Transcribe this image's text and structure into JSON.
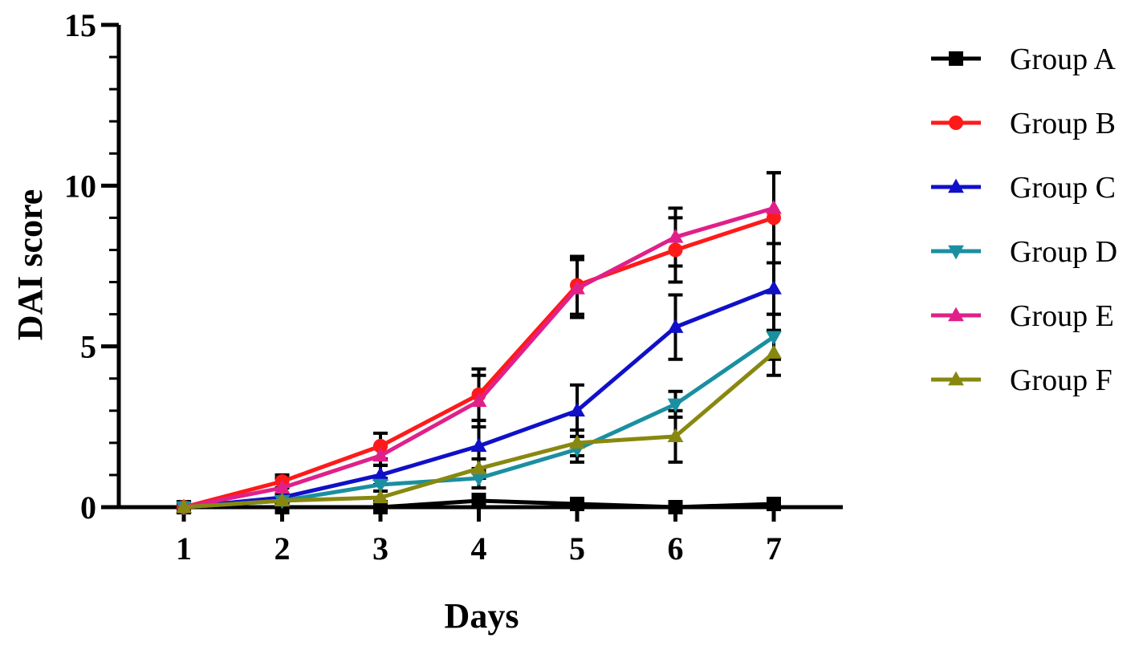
{
  "chart_data": {
    "type": "line",
    "xlabel": "Days",
    "ylabel": "DAI score",
    "x": [
      1,
      2,
      3,
      4,
      5,
      6,
      7
    ],
    "x_tick_labels": [
      "1",
      "2",
      "3",
      "4",
      "5",
      "6",
      "7"
    ],
    "ylim": [
      0,
      15
    ],
    "y_ticks": [
      0,
      5,
      10,
      15
    ],
    "y_tick_labels": [
      "0",
      "5",
      "10",
      "15"
    ],
    "grid": false,
    "legend_position": "right",
    "series": [
      {
        "name": "Group A",
        "color": "#000000",
        "marker": "square",
        "values": [
          0,
          0,
          0,
          0.2,
          0.1,
          0,
          0.1
        ],
        "errors": [
          0,
          0,
          0,
          0.2,
          0.1,
          0,
          0.1
        ]
      },
      {
        "name": "Group B",
        "color": "#ff1a1a",
        "marker": "circle",
        "values": [
          0,
          0.8,
          1.9,
          3.5,
          6.9,
          8.0,
          9.0
        ],
        "errors": [
          0,
          0.2,
          0.4,
          0.8,
          0.9,
          1.0,
          1.4
        ]
      },
      {
        "name": "Group C",
        "color": "#1010c8",
        "marker": "triangle-up",
        "values": [
          0,
          0.3,
          1.0,
          1.9,
          3.0,
          5.6,
          6.8
        ],
        "errors": [
          0,
          0.1,
          0.3,
          0.8,
          0.8,
          1.0,
          0.8
        ]
      },
      {
        "name": "Group D",
        "color": "#1a8fa0",
        "marker": "triangle-down",
        "values": [
          0,
          0.2,
          0.7,
          0.9,
          1.8,
          3.2,
          5.3
        ],
        "errors": [
          0,
          0.1,
          0.2,
          0.3,
          0.4,
          0.4,
          0.7
        ]
      },
      {
        "name": "Group E",
        "color": "#e0208a",
        "marker": "triangle-up",
        "values": [
          0,
          0.6,
          1.6,
          3.3,
          6.8,
          8.4,
          9.3
        ],
        "errors": [
          0,
          0.3,
          0.3,
          0.8,
          0.9,
          0.9,
          1.1
        ]
      },
      {
        "name": "Group F",
        "color": "#888810",
        "marker": "triangle-up",
        "values": [
          0,
          0.2,
          0.3,
          1.2,
          2.0,
          2.2,
          4.8
        ],
        "errors": [
          0,
          0.1,
          0.2,
          0.3,
          0.4,
          0.8,
          0.7
        ]
      }
    ]
  }
}
